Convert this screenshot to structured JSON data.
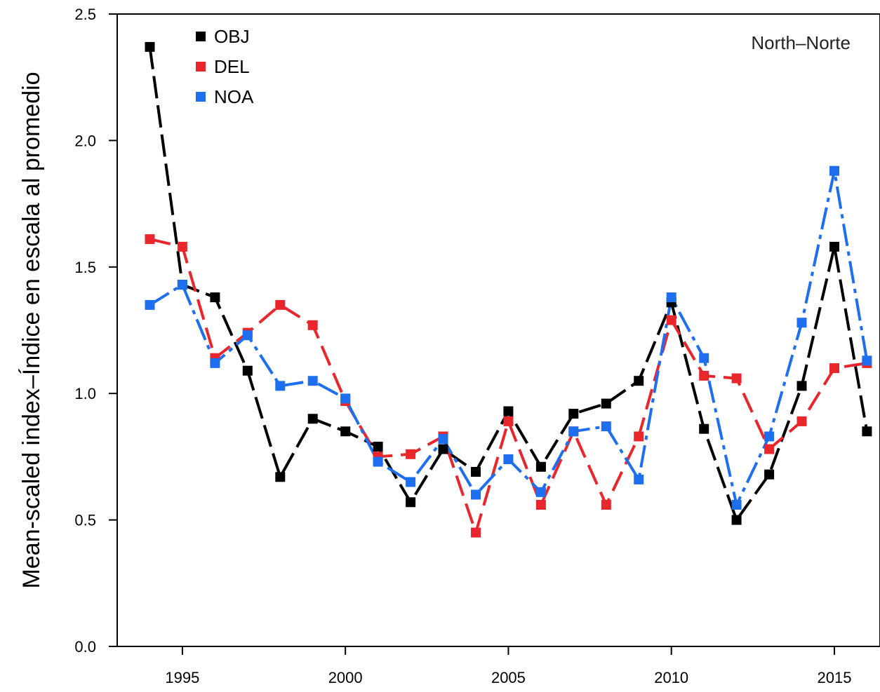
{
  "chart_data": {
    "type": "line",
    "annotation": "North–Norte",
    "ylabel": "Mean-scaled index–Índice en escala al promedio",
    "xlabel": "",
    "xlim": [
      1993.0,
      2016.4
    ],
    "ylim": [
      0,
      2.5
    ],
    "xticks": [
      1995,
      2000,
      2005,
      2010,
      2015
    ],
    "xtick_labels": [
      "1995",
      "2000",
      "2005",
      "2010",
      "2015"
    ],
    "yticks": [
      0,
      0.5,
      1,
      1.5,
      2,
      2.5
    ],
    "ytick_labels": [
      "0.0",
      "0.5",
      "1.0",
      "1.5",
      "2.0",
      "2.5"
    ],
    "grid": false,
    "legend_position": "top-left",
    "x": [
      1994,
      1995,
      1996,
      1997,
      1998,
      1999,
      2000,
      2001,
      2002,
      2003,
      2004,
      2005,
      2006,
      2007,
      2008,
      2009,
      2010,
      2011,
      2012,
      2013,
      2014,
      2015,
      2016
    ],
    "series": [
      {
        "name": "OBJ",
        "color": "#000000",
        "values": [
          2.37,
          1.43,
          1.38,
          1.09,
          0.67,
          0.9,
          0.85,
          0.79,
          0.57,
          0.78,
          0.69,
          0.93,
          0.71,
          0.92,
          0.96,
          1.05,
          1.36,
          0.86,
          0.5,
          0.68,
          1.03,
          1.58,
          0.85
        ]
      },
      {
        "name": "DEL",
        "color": "#e8262b",
        "values": [
          1.61,
          1.58,
          1.14,
          1.24,
          1.35,
          1.27,
          0.97,
          0.75,
          0.76,
          0.83,
          0.45,
          0.89,
          0.56,
          0.85,
          0.56,
          0.83,
          1.29,
          1.07,
          1.06,
          0.78,
          0.89,
          1.1,
          1.12
        ]
      },
      {
        "name": "NOA",
        "color": "#1e6ff0",
        "values": [
          1.35,
          1.43,
          1.12,
          1.23,
          1.03,
          1.05,
          0.98,
          0.73,
          0.65,
          0.82,
          0.6,
          0.74,
          0.61,
          0.85,
          0.87,
          0.66,
          1.38,
          1.14,
          0.56,
          0.83,
          1.28,
          1.88,
          1.13
        ]
      }
    ]
  }
}
